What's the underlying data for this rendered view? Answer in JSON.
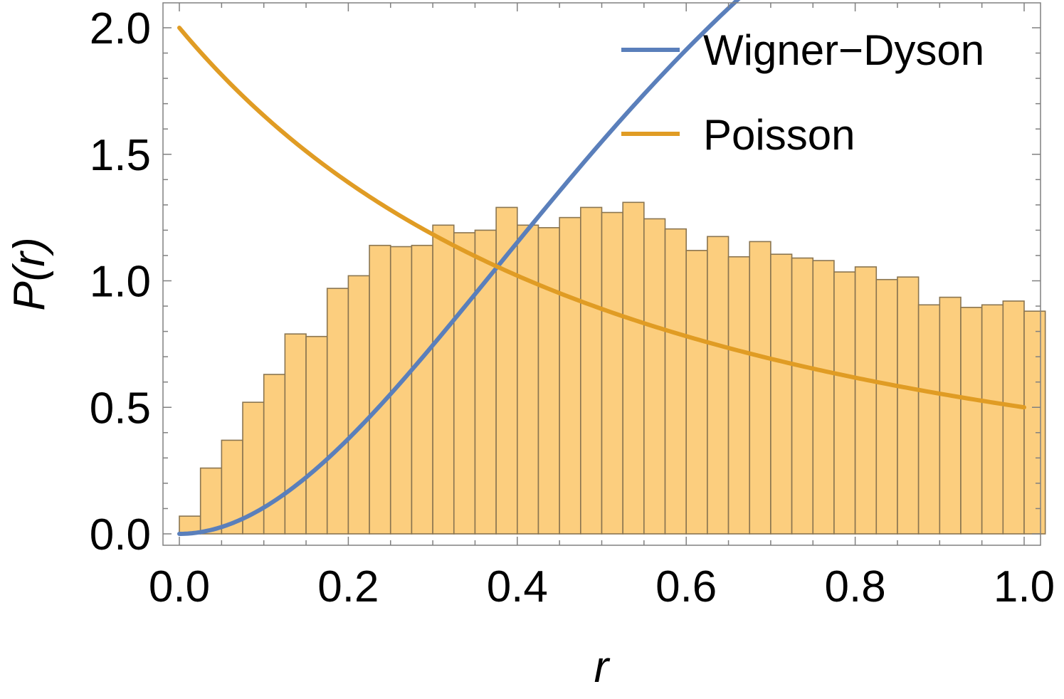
{
  "chart_data": {
    "type": "bar",
    "xlabel": "r",
    "ylabel": "P(r)",
    "xlim": [
      0,
      1
    ],
    "ylim": [
      0,
      2.1
    ],
    "x_ticks": [
      "0.0",
      "0.2",
      "0.4",
      "0.6",
      "0.8",
      "1.0"
    ],
    "y_ticks": [
      "0.0",
      "0.5",
      "1.0",
      "1.5",
      "2.0"
    ],
    "grid": false,
    "legend_position": "top-right",
    "histogram": {
      "bin_width": 0.025,
      "bin_start": 0,
      "values": [
        0.07,
        0.26,
        0.37,
        0.52,
        0.63,
        0.79,
        0.78,
        0.97,
        1.02,
        1.14,
        1.135,
        1.14,
        1.22,
        1.19,
        1.2,
        1.29,
        1.22,
        1.21,
        1.25,
        1.29,
        1.27,
        1.31,
        1.245,
        1.205,
        1.12,
        1.175,
        1.095,
        1.155,
        1.105,
        1.09,
        1.08,
        1.035,
        1.055,
        1.005,
        1.015,
        0.905,
        0.935,
        0.895,
        0.905,
        0.92,
        0.88
      ],
      "fill_color": "#fcce7e",
      "edge_color": "#8a7550"
    },
    "series": [
      {
        "name": "Wigner−Dyson",
        "color": "#5a7fbb",
        "formula": "(81*sqrt(3)/(4*pi)) * (r + r^2)^2 / (1 + r + r^2)^(5/2)"
      },
      {
        "name": "Poisson",
        "color": "#e09c24",
        "formula": "2 / (1 + r)^2"
      }
    ]
  }
}
